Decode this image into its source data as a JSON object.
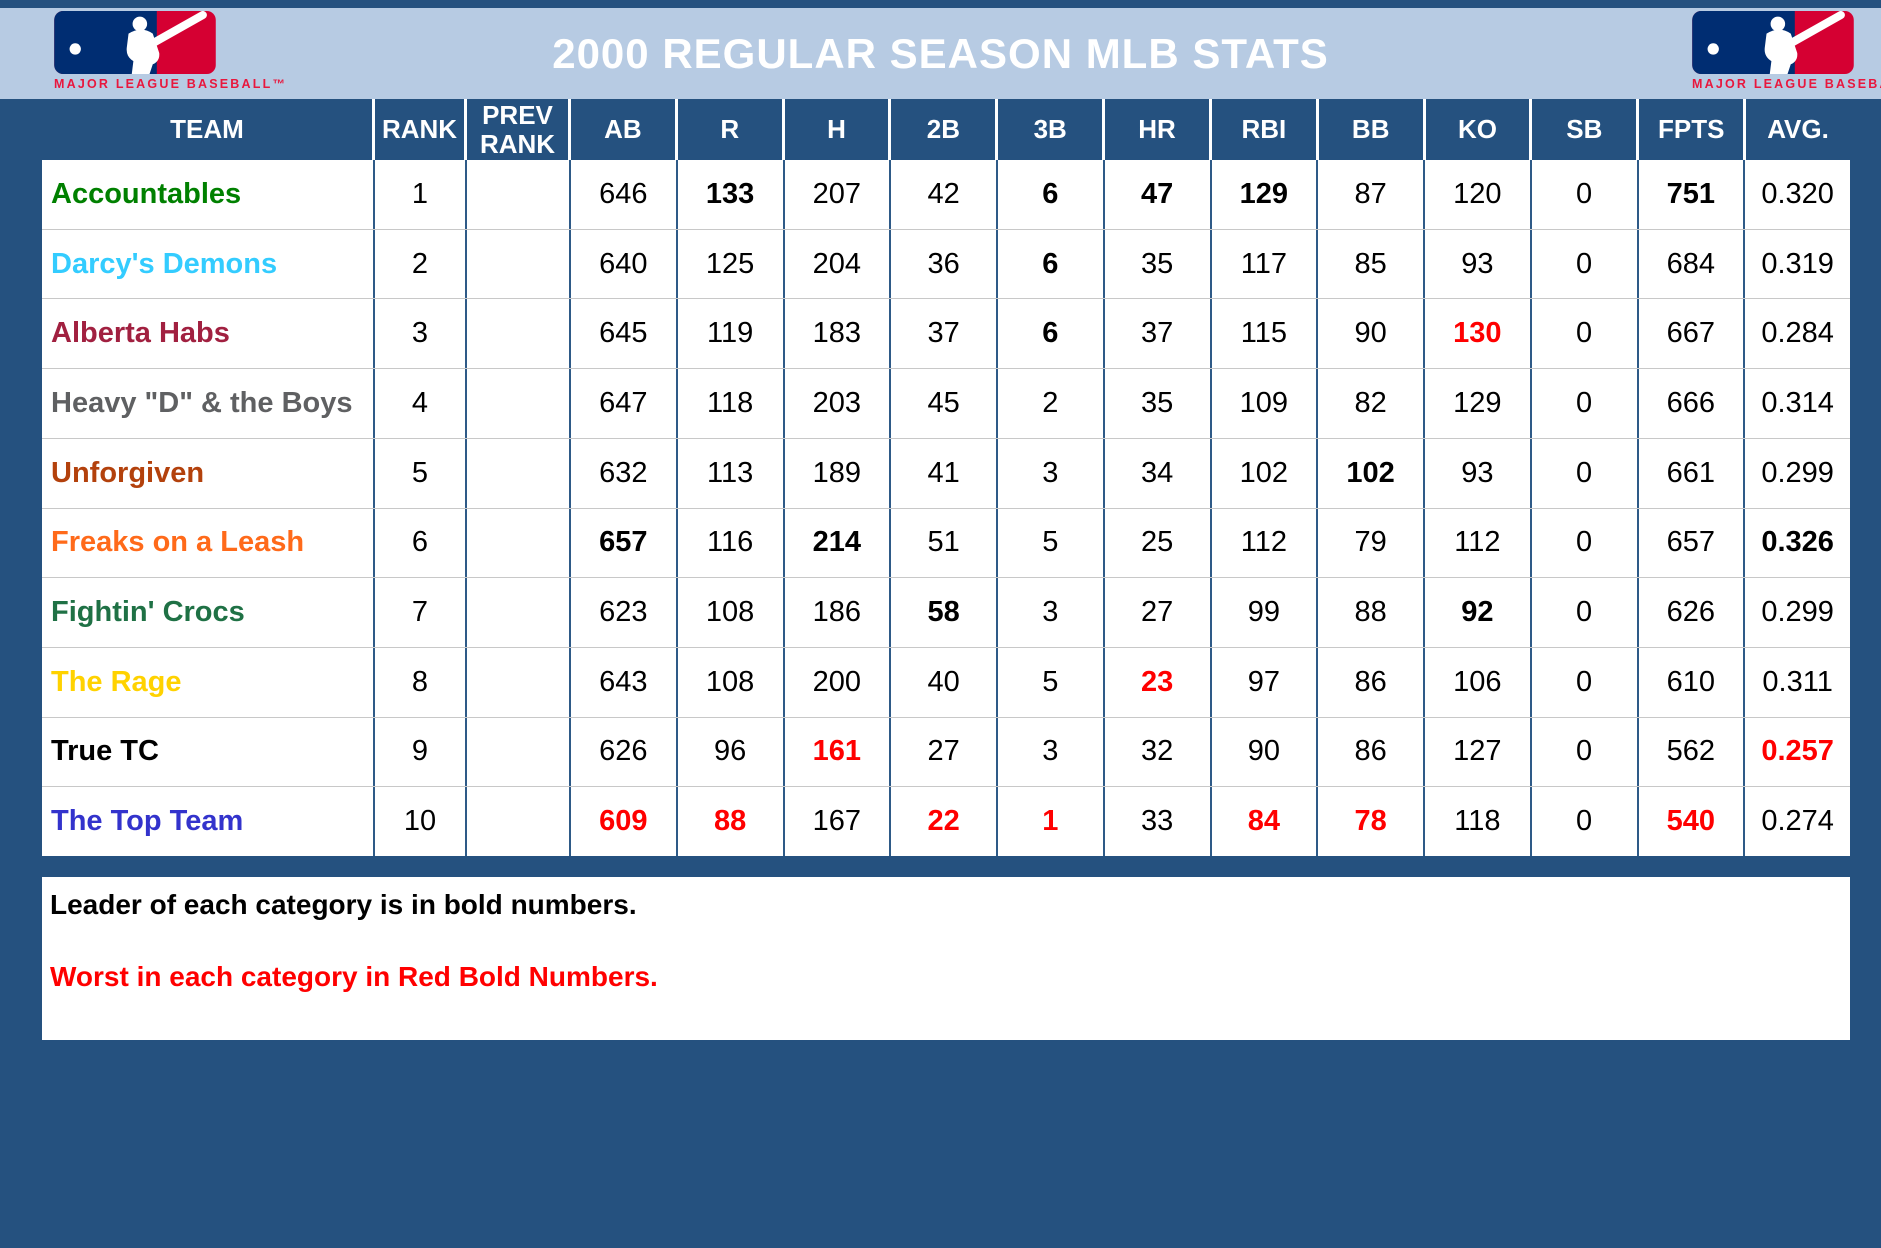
{
  "header": {
    "title": "2000 REGULAR SEASON MLB STATS",
    "logo_caption": "MAJOR LEAGUE BASEBALL™"
  },
  "table": {
    "columns": [
      "TEAM",
      "RANK",
      "PREV RANK",
      "AB",
      "R",
      "H",
      "2B",
      "3B",
      "HR",
      "RBI",
      "BB",
      "KO",
      "SB",
      "FPTS",
      "AVG."
    ],
    "column_keys": [
      "team",
      "rank",
      "prev-rank",
      "ab",
      "r",
      "h",
      "2b",
      "3b",
      "hr",
      "rbi",
      "bb",
      "ko",
      "sb",
      "fpts",
      "avg"
    ],
    "rows": [
      {
        "team": "Accountables",
        "team_color": "#008000",
        "rank": "1",
        "prev_rank": "",
        "values": [
          "646",
          "133",
          "207",
          "42",
          "6",
          "47",
          "129",
          "87",
          "120",
          "0",
          "751",
          "0.320"
        ],
        "styles": [
          "",
          "lead",
          "",
          "",
          "lead",
          "lead",
          "lead",
          "",
          "",
          "",
          "lead",
          ""
        ]
      },
      {
        "team": "Darcy's Demons",
        "team_color": "#33CCFF",
        "rank": "2",
        "prev_rank": "",
        "values": [
          "640",
          "125",
          "204",
          "36",
          "6",
          "35",
          "117",
          "85",
          "93",
          "0",
          "684",
          "0.319"
        ],
        "styles": [
          "",
          "",
          "",
          "",
          "lead",
          "",
          "",
          "",
          "",
          "",
          "",
          ""
        ]
      },
      {
        "team": "Alberta Habs",
        "team_color": "#A12040",
        "rank": "3",
        "prev_rank": "",
        "values": [
          "645",
          "119",
          "183",
          "37",
          "6",
          "37",
          "115",
          "90",
          "130",
          "0",
          "667",
          "0.284"
        ],
        "styles": [
          "",
          "",
          "",
          "",
          "lead",
          "",
          "",
          "",
          "worst",
          "",
          "",
          ""
        ]
      },
      {
        "team": "Heavy \"D\" & the Boys",
        "team_color": "#5F6062",
        "rank": "4",
        "prev_rank": "",
        "values": [
          "647",
          "118",
          "203",
          "45",
          "2",
          "35",
          "109",
          "82",
          "129",
          "0",
          "666",
          "0.314"
        ],
        "styles": [
          "",
          "",
          "",
          "",
          "",
          "",
          "",
          "",
          "",
          "",
          "",
          ""
        ]
      },
      {
        "team": "Unforgiven",
        "team_color": "#B3410C",
        "rank": "5",
        "prev_rank": "",
        "values": [
          "632",
          "113",
          "189",
          "41",
          "3",
          "34",
          "102",
          "102",
          "93",
          "0",
          "661",
          "0.299"
        ],
        "styles": [
          "",
          "",
          "",
          "",
          "",
          "",
          "",
          "lead",
          "",
          "",
          "",
          ""
        ]
      },
      {
        "team": "Freaks on a Leash",
        "team_color": "#FF6A1A",
        "rank": "6",
        "prev_rank": "",
        "values": [
          "657",
          "116",
          "214",
          "51",
          "5",
          "25",
          "112",
          "79",
          "112",
          "0",
          "657",
          "0.326"
        ],
        "styles": [
          "lead",
          "",
          "lead",
          "",
          "",
          "",
          "",
          "",
          "",
          "",
          "",
          "lead"
        ]
      },
      {
        "team": "Fightin' Crocs",
        "team_color": "#1F7145",
        "rank": "7",
        "prev_rank": "",
        "values": [
          "623",
          "108",
          "186",
          "58",
          "3",
          "27",
          "99",
          "88",
          "92",
          "0",
          "626",
          "0.299"
        ],
        "styles": [
          "",
          "",
          "",
          "lead",
          "",
          "",
          "",
          "",
          "lead",
          "",
          "",
          ""
        ]
      },
      {
        "team": "The Rage",
        "team_color": "#FFD200",
        "rank": "8",
        "prev_rank": "",
        "values": [
          "643",
          "108",
          "200",
          "40",
          "5",
          "23",
          "97",
          "86",
          "106",
          "0",
          "610",
          "0.311"
        ],
        "styles": [
          "",
          "",
          "",
          "",
          "",
          "worst",
          "",
          "",
          "",
          "",
          "",
          ""
        ]
      },
      {
        "team": "True TC",
        "team_color": "#000000",
        "rank": "9",
        "prev_rank": "",
        "values": [
          "626",
          "96",
          "161",
          "27",
          "3",
          "32",
          "90",
          "86",
          "127",
          "0",
          "562",
          "0.257"
        ],
        "styles": [
          "",
          "",
          "worst",
          "",
          "",
          "",
          "",
          "",
          "",
          "",
          "",
          "worst"
        ]
      },
      {
        "team": "The Top Team",
        "team_color": "#3333CC",
        "rank": "10",
        "prev_rank": "",
        "values": [
          "609",
          "88",
          "167",
          "22",
          "1",
          "33",
          "84",
          "78",
          "118",
          "0",
          "540",
          "0.274"
        ],
        "styles": [
          "worst",
          "worst",
          "",
          "worst",
          "worst",
          "",
          "worst",
          "worst",
          "",
          "",
          "worst",
          ""
        ]
      }
    ]
  },
  "footer": {
    "line1": "Leader of each category is in bold numbers.",
    "line2": "Worst in each category in Red Bold Numbers."
  },
  "colors": {
    "frame_navy": "#25517F",
    "header_navy": "#25517F",
    "band_blue": "#B7CBE3",
    "grid_navy": "#2E5A87",
    "row_line_gray": "#C8C8C8",
    "worst_red": "#FF0000",
    "title_white": "#FFFFFF",
    "mlb_blue": "#002D72",
    "mlb_red": "#D50032",
    "caption_red": "#E8173D"
  }
}
